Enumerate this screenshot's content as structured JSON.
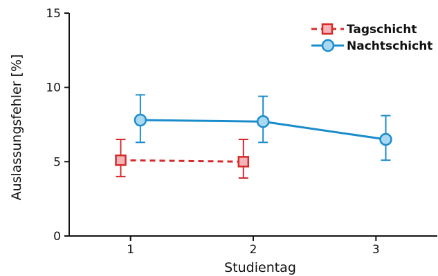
{
  "chart_data": {
    "type": "line",
    "xlabel": "Studientag",
    "ylabel": "Auslassungsfehler [%]",
    "x_ticks": [
      "1",
      "2",
      "3"
    ],
    "y_ticks": [
      "0",
      "5",
      "10",
      "15"
    ],
    "ylim": [
      0,
      15
    ],
    "xlim": [
      0.5,
      3.5
    ],
    "grid": false,
    "legend_position": "top-right",
    "series": [
      {
        "name": "Tagschicht",
        "color": "#d42a2a",
        "fill": "#f4b4b8",
        "marker": "square",
        "line_style": "dashed",
        "x": [
          1,
          2
        ],
        "y": [
          5.1,
          5.0
        ],
        "err_low": [
          4.0,
          3.9
        ],
        "err_high": [
          6.5,
          6.5
        ]
      },
      {
        "name": "Nachtschicht",
        "color": "#1a8ccc",
        "fill": "#a9d8f0",
        "marker": "circle",
        "line_style": "solid",
        "x": [
          1,
          2,
          3
        ],
        "y": [
          7.8,
          7.7,
          6.5
        ],
        "err_low": [
          6.3,
          6.3,
          5.1
        ],
        "err_high": [
          9.5,
          9.4,
          8.1
        ]
      }
    ]
  }
}
